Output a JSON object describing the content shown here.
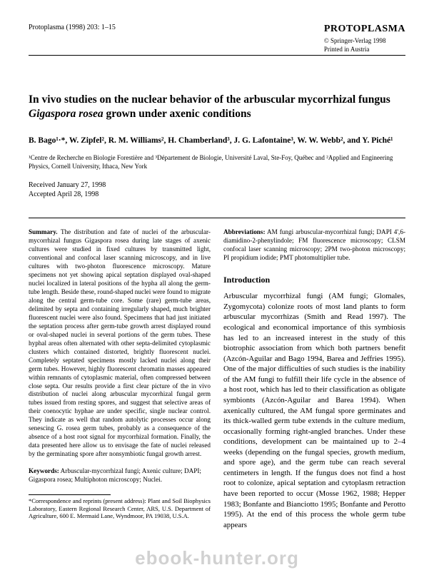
{
  "header": {
    "citation": "Protoplasma (1998) 203: 1–15",
    "journal_name": "PROTOPLASMA",
    "copyright": "© Springer-Verlag 1998",
    "printed": "Printed in Austria"
  },
  "title": {
    "line1": "In vivo studies on the nuclear behavior of the arbuscular mycorrhizal fungus",
    "line2_italic": "Gigaspora rosea",
    "line2_rest": " grown under axenic conditions"
  },
  "authors": "B. Bago¹·*, W. Zipfel², R. M. Williams², H. Chamberland³, J. G. Lafontaine³, W. W. Webb², and Y. Piché¹",
  "affil": "¹Centre de Recherche en Biologie Forestière and ³Département de Biologie, Université Laval, Ste-Foy, Québec and ²Applied and Engineering Physics, Cornell University, Ithaca, New York",
  "dates": {
    "received": "Received January 27, 1998",
    "accepted": "Accepted April 28, 1998"
  },
  "summary": {
    "label": "Summary.",
    "text": " The distribution and fate of nuclei of the arbuscular-mycorrhizal fungus Gigaspora rosea during late stages of axenic cultures were studied in fixed cultures by transmitted light, conventional and confocal laser scanning microscopy, and in live cultures with two-photon fluorescence microscopy. Mature specimens not yet showing apical septation displayed oval-shaped nuclei localized in lateral positions of the hypha all along the germ-tube length. Beside these, round-shaped nuclei were found to migrate along the central germ-tube core. Some (rare) germ-tube areas, delimited by septa and containing irregularly shaped, much brighter fluorescent nuclei were also found. Specimens that had just initiated the septation process after germ-tube growth arrest displayed round or oval-shaped nuclei in several portions of the germ tubes. These hyphal areas often alternated with other septa-delimited cytoplasmic clusters which contained distorted, brightly fluorescent nuclei. Completely septated specimens mostly lacked nuclei along their germ tubes. However, highly fluorescent chromatin masses appeared within remnants of cytoplasmic material, often compressed between close septa. Our results provide a first clear picture of the in vivo distribution of nuclei along arbuscular mycorrhizal fungal germ tubes issued from resting spores, and suggest that selective areas of their coenocytic hyphae are under specific, single nuclear control. They indicate as well that random autolytic processes occur along senescing G. rosea germ tubes, probably as a consequence of the absence of a host root signal for mycorrhizal formation. Finally, the data presented here allow us to envisage the fate of nuclei released by the germinating spore after nonsymbiotic fungal growth arrest."
  },
  "keywords": {
    "label": "Keywords:",
    "text": " Arbuscular-mycorrhizal fungi; Axenic culture; DAPI; Gigaspora rosea; Multiphoton microscopy; Nuclei."
  },
  "footnote": "*Correspondence and reprints (present address): Plant and Soil Biophysics Laboratory, Eastern Regional Research Center, ARS, U.S. Department of Agriculture, 600 E. Mermaid Lane, Wyndmoor, PA 19038, U.S.A.",
  "abbrev": {
    "label": "Abbreviations:",
    "text": " AM fungi arbuscular-mycorrhizal fungi; DAPI 4',6-diamidino-2-phenylindole; FM fluorescence microscopy; CLSM confocal laser scanning microscopy; 2PM two-photon microscopy; PI propidium iodide; PMT photomultiplier tube."
  },
  "intro": {
    "heading": "Introduction",
    "para": "Arbuscular mycorrhizal fungi (AM fungi; Glomales, Zygomycota) colonize roots of most land plants to form arbuscular mycorrhizas (Smith and Read 1997). The ecological and economical importance of this symbiosis has led to an increased interest in the study of this biotrophic association from which both partners benefit (Azcón-Aguilar and Bago 1994, Barea and Jeffries 1995). One of the major difficulties of such studies is the inability of the AM fungi to fulfill their life cycle in the absence of a host root, which has led to their classification as obligate symbionts (Azcón-Aguilar and Barea 1994).\nWhen axenically cultured, the AM fungal spore germinates and its thick-walled germ tube extends in the culture medium, occasionally forming right-angled branches. Under these conditions, development can be maintained up to 2–4 weeks (depending on the fungal species, growth medium, and spore age), and the germ tube can reach several centimeters in length. If the fungus does not find a host root to colonize, apical septation and cytoplasm retraction have been reported to occur (Mosse 1962, 1988; Hepper 1983; Bonfante and Bianciotto 1995; Bonfante and Perotto 1995). At the end of this process the whole germ tube appears"
  },
  "watermark": "ebook-hunter.org"
}
